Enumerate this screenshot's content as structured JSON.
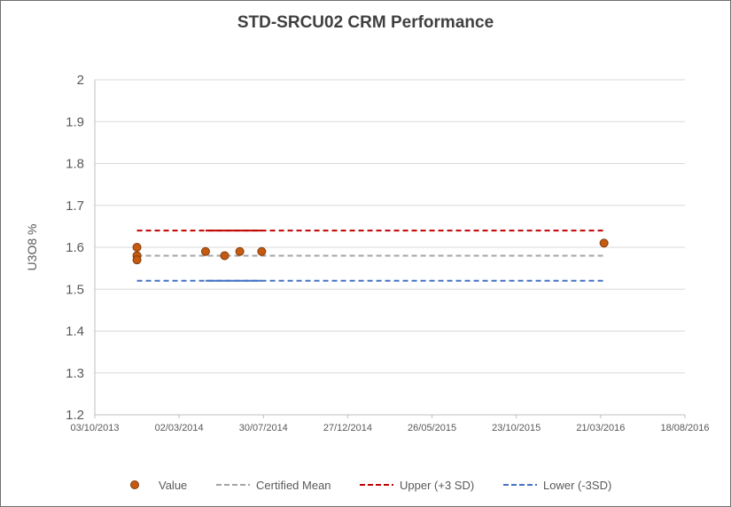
{
  "chart_data": {
    "type": "scatter",
    "title": "STD-SRCU02 CRM Performance",
    "xlabel": "",
    "ylabel": "U3O8 %",
    "x_ticks": [
      "03/10/2013",
      "02/03/2014",
      "30/07/2014",
      "27/12/2014",
      "26/05/2015",
      "23/10/2015",
      "21/03/2016",
      "18/08/2016"
    ],
    "y_ticks": [
      "1.2",
      "1.3",
      "1.4",
      "1.5",
      "1.6",
      "1.7",
      "1.8",
      "1.9",
      "2"
    ],
    "ylim": [
      1.2,
      2.0
    ],
    "xlim": [
      "2013-10-03",
      "2016-08-18"
    ],
    "grid": "horizontal",
    "legend_position": "bottom",
    "series": [
      {
        "name": "Value",
        "kind": "points",
        "color": "#c55a11",
        "points": [
          {
            "x": "2013-12-17",
            "y": 1.6
          },
          {
            "x": "2013-12-17",
            "y": 1.58
          },
          {
            "x": "2013-12-17",
            "y": 1.57
          },
          {
            "x": "2014-04-18",
            "y": 1.59
          },
          {
            "x": "2014-05-22",
            "y": 1.58
          },
          {
            "x": "2014-06-18",
            "y": 1.59
          },
          {
            "x": "2014-07-27",
            "y": 1.59
          },
          {
            "x": "2016-03-27",
            "y": 1.61
          }
        ]
      },
      {
        "name": "Certified Mean",
        "kind": "dashed-line",
        "color": "#a5a5a5",
        "value": 1.58,
        "x_range": [
          "2013-12-17",
          "2016-03-27"
        ]
      },
      {
        "name": "Upper (+3 SD)",
        "kind": "dashed-line",
        "color": "#c00000",
        "value": 1.64,
        "x_range": [
          "2013-12-17",
          "2016-03-27"
        ]
      },
      {
        "name": "Lower (-3SD)",
        "kind": "dashed-line",
        "color": "#4472c4",
        "value": 1.52,
        "x_range": [
          "2013-12-17",
          "2016-03-27"
        ]
      }
    ]
  }
}
